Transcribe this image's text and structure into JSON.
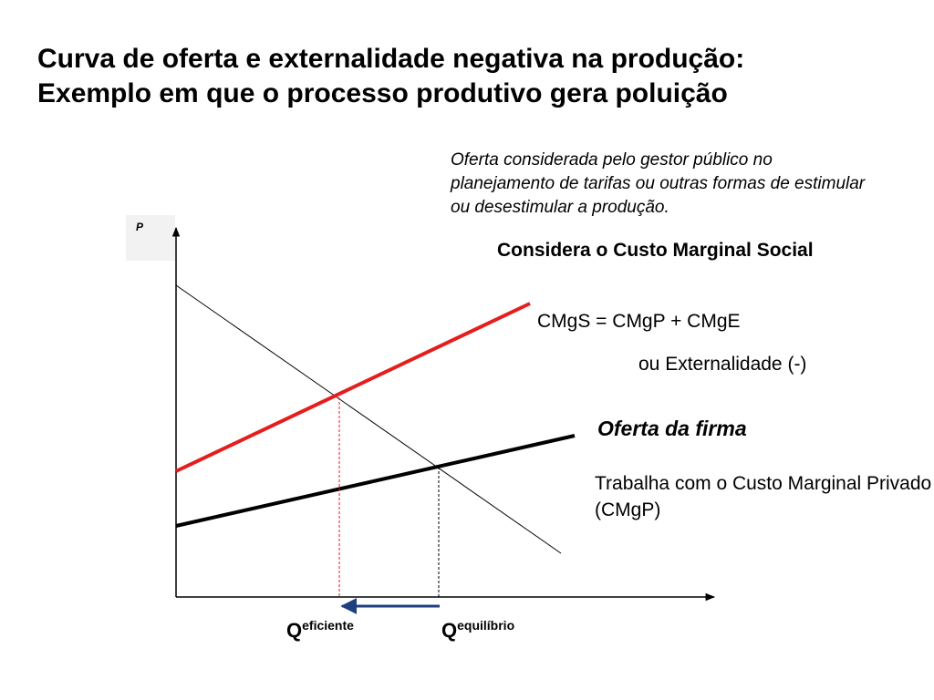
{
  "title": {
    "line1": "Curva de oferta e externalidade negativa na produção:",
    "line2": "Exemplo em que o processo produtivo gera poluição"
  },
  "notes": {
    "gestor": "Oferta considerada pelo gestor público no planejamento de tarifas ou outras formas de estimular ou desestimular a produção.",
    "social": "Considera o Custo Marginal Social",
    "cmgs_formula": "CMgS = CMgP + CMgE",
    "externalidade": "ou Externalidade (-)",
    "oferta_firma": "Oferta da firma",
    "trabalha": "Trabalha com o Custo Marginal Privado (CMgP)"
  },
  "axes": {
    "y_label": "P"
  },
  "quantities": {
    "eficiente": {
      "main": "Q",
      "sup": "eficiente"
    },
    "equilibrio": {
      "main": "Q",
      "sup": "equilíbrio"
    }
  },
  "colors": {
    "social_curve": "#e41e1e",
    "private_curve": "#000000",
    "demand_curve": "#000000",
    "arrow": "#1f3f7f",
    "efficient_guide": "#e41e1e",
    "equilibrium_guide": "#000000"
  }
}
